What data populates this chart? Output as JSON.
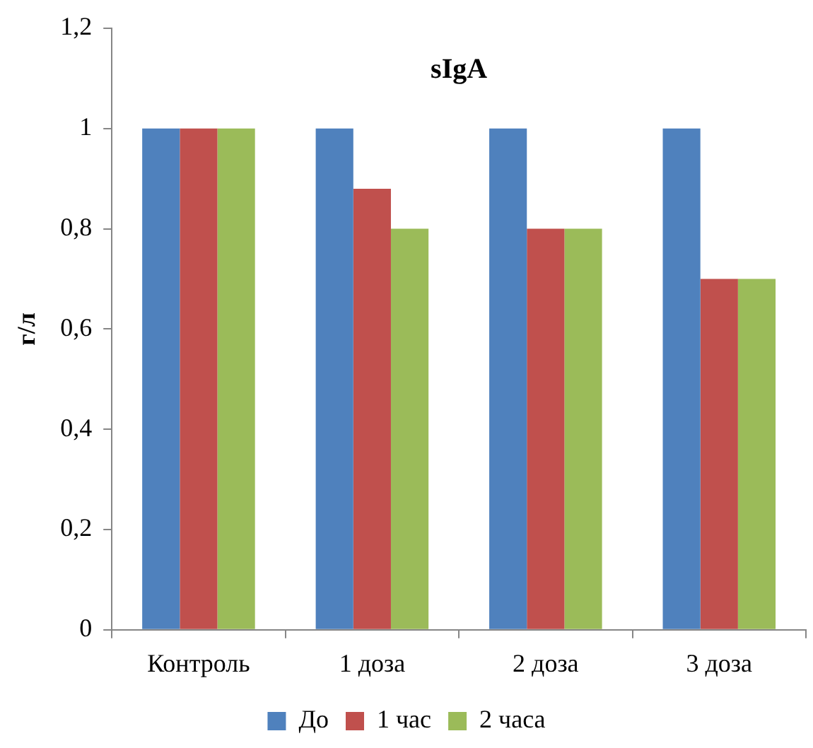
{
  "chart_data": {
    "type": "bar",
    "title": "sIgA",
    "ylabel": "г/л",
    "categories": [
      "Контроль",
      "1 доза",
      "2 доза",
      "3 доза"
    ],
    "series": [
      {
        "name": "До",
        "color": "#4f81bd",
        "values": [
          1,
          1,
          1,
          1
        ]
      },
      {
        "name": "1 час",
        "color": "#c0504d",
        "values": [
          1,
          0.88,
          0.8,
          0.7
        ]
      },
      {
        "name": "2 часа",
        "color": "#9bbb59",
        "values": [
          1,
          0.8,
          0.8,
          0.7
        ]
      }
    ],
    "ylim": [
      0,
      1.2
    ],
    "yticks": [
      {
        "value": 0,
        "label": "0"
      },
      {
        "value": 0.2,
        "label": "0,2"
      },
      {
        "value": 0.4,
        "label": "0,4"
      },
      {
        "value": 0.6,
        "label": "0,6"
      },
      {
        "value": 0.8,
        "label": "0,8"
      },
      {
        "value": 1,
        "label": "1"
      },
      {
        "value": 1.2,
        "label": "1,2"
      }
    ],
    "grid": false,
    "legend": "bottom"
  }
}
